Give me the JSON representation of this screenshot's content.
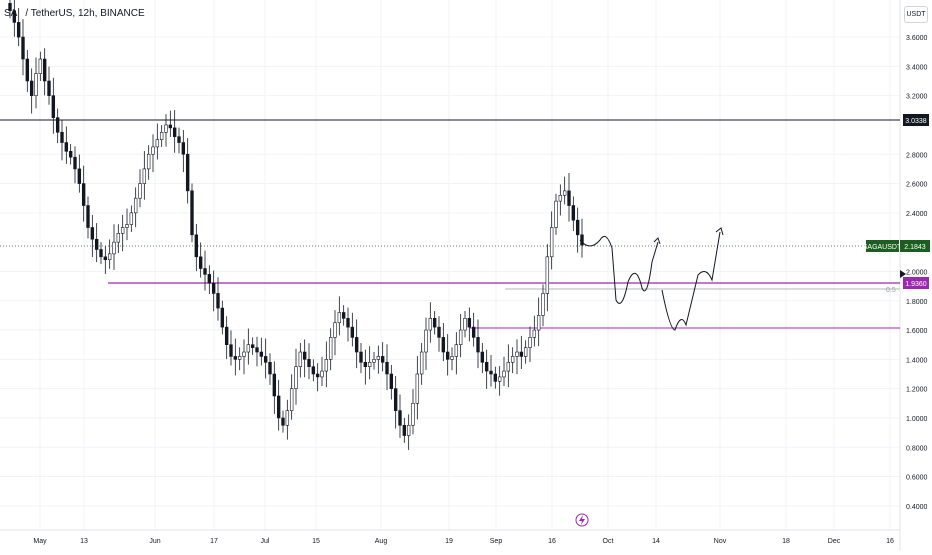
{
  "header": {
    "symbol_text": "SA",
    "symbol_rest": "/ TetherUS, 12h, BINANCE"
  },
  "currency_label": "USDT",
  "price_axis": {
    "ticks": [
      "3.6000",
      "3.4000",
      "3.2000",
      "2.8000",
      "2.6000",
      "2.4000",
      "2.0000",
      "1.8000",
      "1.6000",
      "1.4000",
      "1.2000",
      "1.0000",
      "0.8000",
      "0.6000",
      "0.4000"
    ],
    "tick_values": [
      3.6,
      3.4,
      3.2,
      2.8,
      2.6,
      2.4,
      2.0,
      1.8,
      1.6,
      1.4,
      1.2,
      1.0,
      0.8,
      0.6,
      0.4
    ]
  },
  "time_axis": {
    "labels": [
      "May",
      "13",
      "Jun",
      "17",
      "Jul",
      "15",
      "Aug",
      "19",
      "Sep",
      "16",
      "Oct",
      "14",
      "Nov",
      "18",
      "Dec",
      "16"
    ]
  },
  "badges": {
    "resistance_value": "3.0338",
    "symbol_tag": "SAGAUSDT",
    "current_price": "2.1843",
    "support_value": "1.9360",
    "fib_label": "0.5"
  },
  "colors": {
    "candle": "#131722",
    "support_line": "#9c27b0",
    "resistance_line": "#131722",
    "current_badge": "#1b5e20",
    "support_badge": "#9c27b0",
    "grid": "#f0f3fa"
  },
  "event_icon": "lightning-icon",
  "chart_data": {
    "type": "candlestick",
    "symbol": "SAGAUSDT",
    "interval": "12h",
    "exchange": "BINANCE",
    "horizontal_levels": [
      3.0338,
      2.1843,
      1.936,
      1.89,
      1.62
    ],
    "projection_paths": 2,
    "close_series": [
      3.78,
      3.7,
      3.6,
      3.45,
      3.3,
      3.2,
      3.35,
      3.45,
      3.3,
      3.2,
      3.05,
      2.95,
      2.88,
      2.82,
      2.78,
      2.7,
      2.6,
      2.45,
      2.3,
      2.22,
      2.15,
      2.1,
      2.08,
      2.12,
      2.2,
      2.26,
      2.3,
      2.32,
      2.4,
      2.5,
      2.6,
      2.7,
      2.8,
      2.85,
      2.9,
      2.95,
      3.0,
      2.98,
      2.92,
      2.88,
      2.8,
      2.55,
      2.25,
      2.1,
      2.02,
      1.98,
      1.92,
      1.85,
      1.75,
      1.62,
      1.5,
      1.42,
      1.4,
      1.42,
      1.45,
      1.5,
      1.48,
      1.45,
      1.42,
      1.38,
      1.3,
      1.15,
      1.0,
      0.95,
      1.05,
      1.2,
      1.35,
      1.45,
      1.4,
      1.35,
      1.3,
      1.28,
      1.32,
      1.4,
      1.55,
      1.65,
      1.72,
      1.68,
      1.62,
      1.55,
      1.45,
      1.38,
      1.35,
      1.38,
      1.4,
      1.42,
      1.38,
      1.3,
      1.2,
      1.05,
      0.95,
      0.88,
      0.95,
      1.1,
      1.3,
      1.45,
      1.6,
      1.68,
      1.62,
      1.55,
      1.45,
      1.4,
      1.42,
      1.5,
      1.6,
      1.68,
      1.62,
      1.55,
      1.45,
      1.38,
      1.32,
      1.3,
      1.25,
      1.28,
      1.32,
      1.38,
      1.42,
      1.45,
      1.42,
      1.48,
      1.55,
      1.6,
      1.7,
      1.85,
      2.1,
      2.3,
      2.48,
      2.52,
      2.55,
      2.45,
      2.35,
      2.25,
      2.18
    ]
  }
}
